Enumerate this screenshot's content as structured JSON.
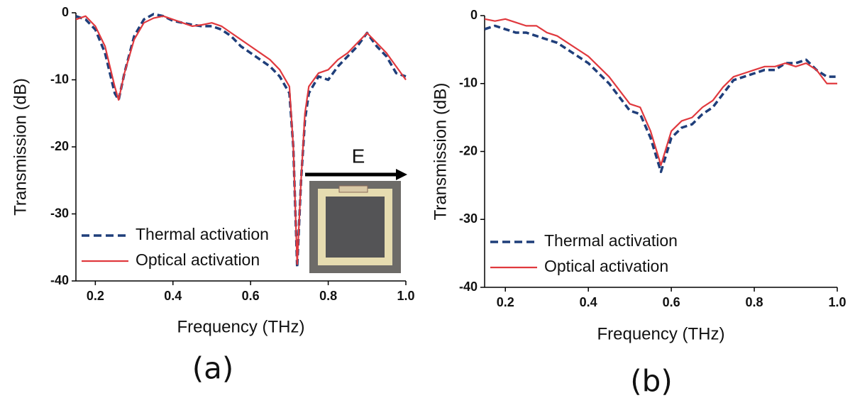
{
  "chart_data": [
    {
      "type": "line",
      "caption": "(a)",
      "xlabel": "Frequency (THz)",
      "ylabel": "Transmission (dB)",
      "annotation": "E",
      "xlim": [
        0.15,
        1.0
      ],
      "ylim": [
        -40,
        0
      ],
      "xticks": [
        0.2,
        0.4,
        0.6,
        0.8,
        {
          "value": 1.0,
          "label": "1.0"
        }
      ],
      "yticks": [
        0,
        -10,
        -20,
        -30,
        -40
      ],
      "legend_position": "lower left",
      "x": [
        0.15,
        0.175,
        0.2,
        0.225,
        0.25,
        0.26,
        0.275,
        0.3,
        0.325,
        0.35,
        0.375,
        0.4,
        0.425,
        0.45,
        0.475,
        0.5,
        0.525,
        0.55,
        0.575,
        0.6,
        0.625,
        0.65,
        0.675,
        0.7,
        0.71,
        0.72,
        0.73,
        0.74,
        0.75,
        0.775,
        0.8,
        0.825,
        0.85,
        0.875,
        0.9,
        0.925,
        0.95,
        0.975,
        1.0
      ],
      "series": [
        {
          "name": "Thermal activation",
          "color": "#1f3e7a",
          "linestyle": "dashed",
          "values": [
            -0.5,
            -1,
            -2.5,
            -6,
            -12,
            -13,
            -9,
            -3.5,
            -1,
            -0.2,
            -0.5,
            -1.2,
            -1.5,
            -1.8,
            -2,
            -2,
            -2.5,
            -3.5,
            -5,
            -6,
            -7,
            -8,
            -9.5,
            -12,
            -20,
            -38,
            -25,
            -16,
            -12,
            -9.5,
            -10,
            -8,
            -6.5,
            -5,
            -3,
            -5,
            -6.5,
            -9,
            -9.5
          ]
        },
        {
          "name": "Optical activation",
          "color": "#e0393e",
          "linestyle": "solid",
          "values": [
            -1,
            -0.5,
            -2,
            -5,
            -11,
            -13,
            -9,
            -4,
            -1.5,
            -0.8,
            -0.5,
            -1,
            -1.5,
            -2,
            -1.8,
            -1.5,
            -2,
            -3,
            -4,
            -5,
            -6,
            -7,
            -8.5,
            -11,
            -20,
            -37.5,
            -25,
            -15,
            -11,
            -9,
            -8.5,
            -7,
            -6,
            -4.5,
            -3,
            -4.5,
            -6,
            -8,
            -10
          ]
        }
      ]
    },
    {
      "type": "line",
      "caption": "(b)",
      "xlabel": "Frequency (THz)",
      "ylabel": "Transmission (dB)",
      "xlim": [
        0.15,
        1.0
      ],
      "ylim": [
        -40,
        0
      ],
      "xticks": [
        0.2,
        0.4,
        0.6,
        0.8,
        {
          "value": 1.0,
          "label": "1.0"
        }
      ],
      "yticks": [
        0,
        -10,
        -20,
        -30,
        -40
      ],
      "legend_position": "lower left",
      "x": [
        0.15,
        0.175,
        0.2,
        0.225,
        0.25,
        0.275,
        0.3,
        0.325,
        0.35,
        0.375,
        0.4,
        0.425,
        0.45,
        0.475,
        0.5,
        0.525,
        0.55,
        0.575,
        0.6,
        0.625,
        0.65,
        0.675,
        0.7,
        0.725,
        0.75,
        0.775,
        0.8,
        0.825,
        0.85,
        0.875,
        0.9,
        0.925,
        0.95,
        0.975,
        1.0
      ],
      "series": [
        {
          "name": "Thermal activation",
          "color": "#1f3e7a",
          "linestyle": "dashed",
          "values": [
            -2,
            -1.5,
            -2,
            -2.5,
            -2.5,
            -3,
            -3.5,
            -4,
            -5,
            -6,
            -7,
            -8.5,
            -10,
            -12,
            -14,
            -14.5,
            -18,
            -23,
            -18,
            -16.5,
            -16,
            -14.5,
            -13.5,
            -11.5,
            -9.5,
            -9,
            -8.5,
            -8,
            -8,
            -7,
            -7,
            -6.5,
            -8,
            -9,
            -9
          ]
        },
        {
          "name": "Optical activation",
          "color": "#e0393e",
          "linestyle": "solid",
          "values": [
            -0.5,
            -0.8,
            -0.5,
            -1,
            -1.5,
            -1.5,
            -2.5,
            -3,
            -4,
            -5,
            -6,
            -7.5,
            -9,
            -11,
            -13,
            -13.5,
            -17,
            -22,
            -17,
            -15.5,
            -15,
            -13.5,
            -12.5,
            -10.5,
            -9,
            -8.5,
            -8,
            -7.5,
            -7.5,
            -7,
            -7.5,
            -7,
            -8,
            -10,
            -10
          ]
        }
      ]
    }
  ]
}
